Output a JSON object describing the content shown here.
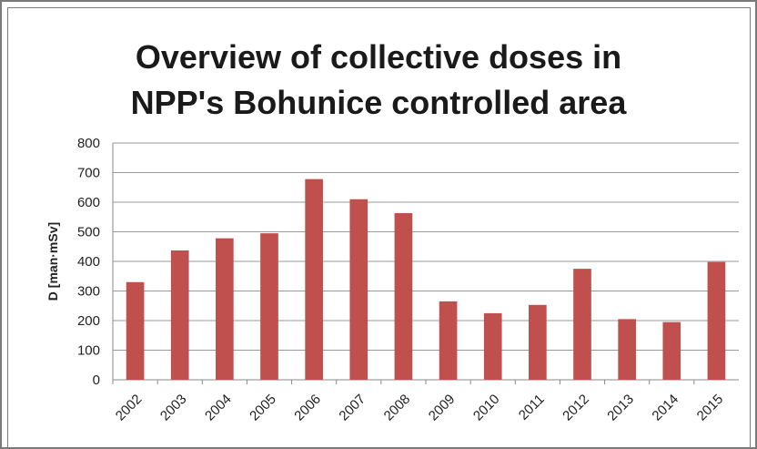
{
  "chart_data": {
    "type": "bar",
    "title_lines": [
      "Overview of collective doses in",
      "NPP's Bohunice controlled area"
    ],
    "ylabel": "D [man·mSv]",
    "xlabel": "",
    "ylim": [
      0,
      800
    ],
    "yticks": [
      0,
      100,
      200,
      300,
      400,
      500,
      600,
      700,
      800
    ],
    "grid": true,
    "bar_color": "#c0504d",
    "categories": [
      "2002",
      "2003",
      "2004",
      "2005",
      "2006",
      "2007",
      "2008",
      "2009",
      "2010",
      "2011",
      "2012",
      "2013",
      "2014",
      "2015"
    ],
    "values": [
      330,
      437,
      478,
      495,
      678,
      610,
      563,
      265,
      225,
      253,
      375,
      205,
      195,
      398
    ]
  }
}
